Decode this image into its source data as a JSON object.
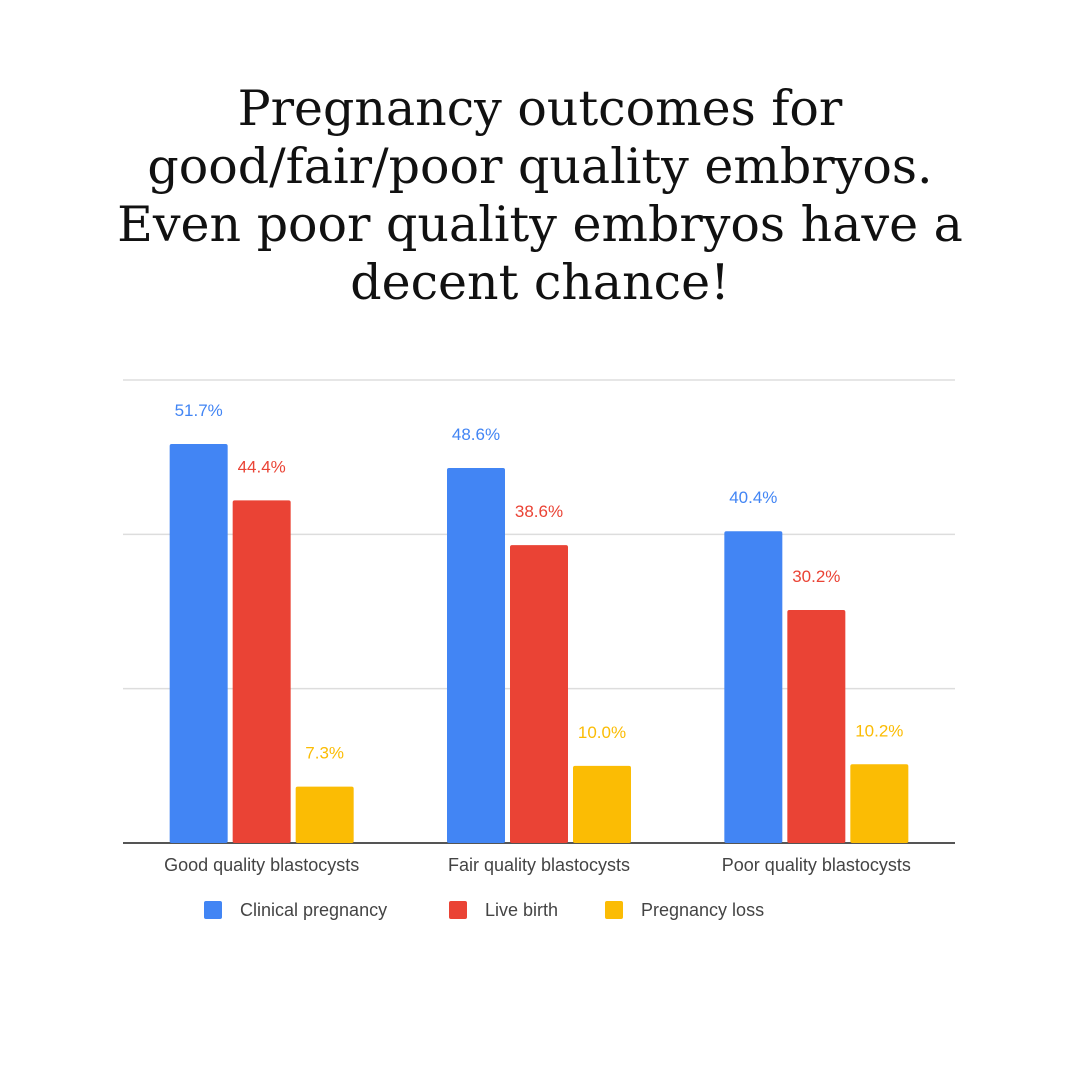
{
  "title_lines": [
    "Pregnancy outcomes for",
    "good/fair/poor quality embryos.",
    "Even poor quality embryos have a",
    "decent chance!"
  ],
  "chart_data": {
    "type": "bar",
    "categories": [
      "Good quality blastocysts",
      "Fair quality blastocysts",
      "Poor quality blastocysts"
    ],
    "series": [
      {
        "name": "Clinical pregnancy",
        "values": [
          51.7,
          48.6,
          40.4
        ],
        "labels": [
          "51.7%",
          "48.6%",
          "40.4%"
        ],
        "color": "#4285f4"
      },
      {
        "name": "Live birth",
        "values": [
          44.4,
          38.6,
          30.2
        ],
        "labels": [
          "44.4%",
          "38.6%",
          "30.2%"
        ],
        "color": "#ea4335"
      },
      {
        "name": "Pregnancy loss",
        "values": [
          7.3,
          10.0,
          10.2
        ],
        "labels": [
          "7.3%",
          "10.0%",
          "10.2%"
        ],
        "color": "#fbbc04"
      }
    ],
    "ylim": [
      0,
      60
    ],
    "gridlines": [
      0,
      20,
      40,
      60
    ],
    "grid": true,
    "legend_position": "bottom",
    "xlabel": "",
    "ylabel": ""
  }
}
